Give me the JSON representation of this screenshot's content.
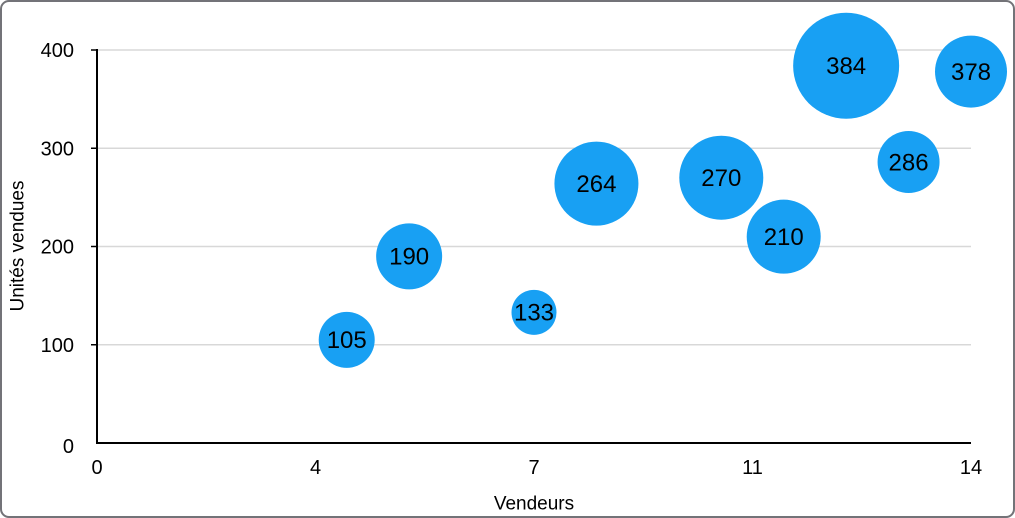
{
  "chart_data": {
    "type": "scatter",
    "subtype": "bubble",
    "title": "",
    "xlabel": "Vendeurs",
    "ylabel": "Unités vendues",
    "xlim": [
      0,
      14
    ],
    "ylim": [
      0,
      400
    ],
    "grid": "horizontal-gridlines",
    "legend_position": "none",
    "x_ticks": [
      {
        "value": 0,
        "label": "0"
      },
      {
        "value": 3.5,
        "label": "4"
      },
      {
        "value": 7,
        "label": "7"
      },
      {
        "value": 10.5,
        "label": "11"
      },
      {
        "value": 14,
        "label": "14"
      }
    ],
    "y_ticks": [
      {
        "value": 0,
        "label": "0"
      },
      {
        "value": 100,
        "label": "100"
      },
      {
        "value": 200,
        "label": "200"
      },
      {
        "value": 300,
        "label": "300"
      },
      {
        "value": 400,
        "label": "400"
      }
    ],
    "series": [
      {
        "name": "bubbles",
        "color": "#18A0F3",
        "points": [
          {
            "x": 4,
            "y": 105,
            "label": "105",
            "radius_px": 28
          },
          {
            "x": 5,
            "y": 190,
            "label": "190",
            "radius_px": 33
          },
          {
            "x": 7,
            "y": 133,
            "label": "133",
            "radius_px": 22.5
          },
          {
            "x": 8,
            "y": 264,
            "label": "264",
            "radius_px": 42
          },
          {
            "x": 10,
            "y": 270,
            "label": "270",
            "radius_px": 42
          },
          {
            "x": 11,
            "y": 210,
            "label": "210",
            "radius_px": 37
          },
          {
            "x": 12,
            "y": 384,
            "label": "384",
            "radius_px": 53
          },
          {
            "x": 13,
            "y": 286,
            "label": "286",
            "radius_px": 31
          },
          {
            "x": 14,
            "y": 378,
            "label": "378",
            "radius_px": 36
          }
        ]
      }
    ],
    "colors": {
      "bubble": "#18A0F3",
      "bubble_label": "#000000",
      "axis": "#000000",
      "gridline": "#D8D8D8",
      "tick_label": "#000000",
      "axis_title": "#000000",
      "background": "#FFFFFF",
      "figure_border": "#737378"
    }
  }
}
